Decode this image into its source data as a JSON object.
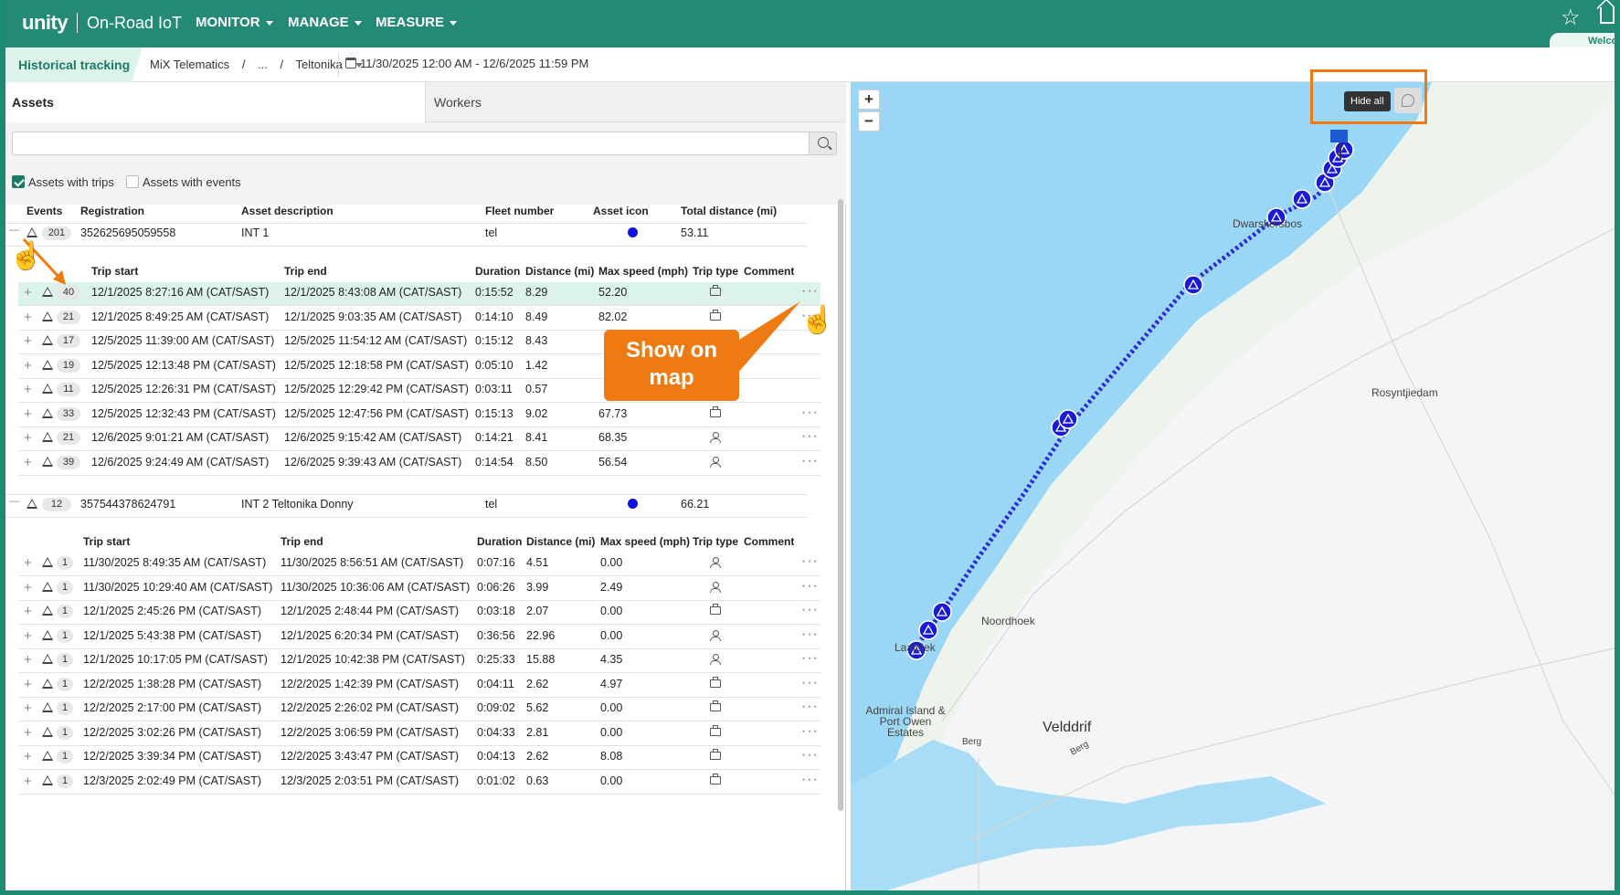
{
  "nav": {
    "logo": "unity",
    "product": "On-Road IoT",
    "menus": [
      "MONITOR",
      "MANAGE",
      "MEASURE"
    ],
    "welcome": "Welco"
  },
  "subbar": {
    "title": "Historical tracking",
    "breadcrumb": [
      "MiX Telematics",
      "/",
      "...",
      "/",
      "Teltonika"
    ],
    "daterange": "11/30/2025 12:00 AM - 12/6/2025 11:59 PM"
  },
  "tabs": {
    "assets": "Assets",
    "workers": "Workers"
  },
  "search": {
    "placeholder": ""
  },
  "filters": {
    "with_trips": "Assets with trips",
    "with_events": "Assets with events"
  },
  "asset_headers": [
    "Events",
    "Registration",
    "Asset description",
    "Fleet number",
    "Asset icon",
    "Total distance (mi)"
  ],
  "trip_headers": [
    "Trip start",
    "Trip end",
    "Duration",
    "Distance (mi)",
    "Max speed (mph)",
    "Trip type",
    "Comment"
  ],
  "assets": [
    {
      "events": "201",
      "registration": "352625695059558",
      "description": "INT 1",
      "fleet": "tel",
      "distance": "53.11",
      "trips": [
        {
          "events": "40",
          "start": "12/1/2025 8:27:16 AM (CAT/SAST)",
          "end": "12/1/2025 8:43:08 AM (CAT/SAST)",
          "duration": "0:15:52",
          "distance": "8.29",
          "speed": "52.20",
          "type": "business"
        },
        {
          "events": "21",
          "start": "12/1/2025 8:49:25 AM (CAT/SAST)",
          "end": "12/1/2025 9:03:35 AM (CAT/SAST)",
          "duration": "0:14:10",
          "distance": "8.49",
          "speed": "82.02",
          "type": "business"
        },
        {
          "events": "17",
          "start": "12/5/2025 11:39:00 AM (CAT/SAST)",
          "end": "12/5/2025 11:54:12 AM (CAT/SAST)",
          "duration": "0:15:12",
          "distance": "8.43",
          "speed": "",
          "type": ""
        },
        {
          "events": "19",
          "start": "12/5/2025 12:13:48 PM (CAT/SAST)",
          "end": "12/5/2025 12:18:58 PM (CAT/SAST)",
          "duration": "0:05:10",
          "distance": "1.42",
          "speed": "",
          "type": ""
        },
        {
          "events": "11",
          "start": "12/5/2025 12:26:31 PM (CAT/SAST)",
          "end": "12/5/2025 12:29:42 PM (CAT/SAST)",
          "duration": "0:03:11",
          "distance": "0.57",
          "speed": "",
          "type": ""
        },
        {
          "events": "33",
          "start": "12/5/2025 12:32:43 PM (CAT/SAST)",
          "end": "12/5/2025 12:47:56 PM (CAT/SAST)",
          "duration": "0:15:13",
          "distance": "9.02",
          "speed": "67.73",
          "type": "business"
        },
        {
          "events": "21",
          "start": "12/6/2025 9:01:21 AM (CAT/SAST)",
          "end": "12/6/2025 9:15:42 AM (CAT/SAST)",
          "duration": "0:14:21",
          "distance": "8.41",
          "speed": "68.35",
          "type": "private"
        },
        {
          "events": "39",
          "start": "12/6/2025 9:24:49 AM (CAT/SAST)",
          "end": "12/6/2025 9:39:43 AM (CAT/SAST)",
          "duration": "0:14:54",
          "distance": "8.50",
          "speed": "56.54",
          "type": "private"
        }
      ]
    },
    {
      "events": "12",
      "registration": "357544378624791",
      "description": "INT 2 Teltonika Donny",
      "fleet": "tel",
      "distance": "66.21",
      "trips": [
        {
          "events": "1",
          "start": "11/30/2025 8:49:35 AM (CAT/SAST)",
          "end": "11/30/2025 8:56:51 AM (CAT/SAST)",
          "duration": "0:07:16",
          "distance": "4.51",
          "speed": "0.00",
          "type": "private"
        },
        {
          "events": "1",
          "start": "11/30/2025 10:29:40 AM (CAT/SAST)",
          "end": "11/30/2025 10:36:06 AM (CAT/SAST)",
          "duration": "0:06:26",
          "distance": "3.99",
          "speed": "2.49",
          "type": "private"
        },
        {
          "events": "1",
          "start": "12/1/2025 2:45:26 PM (CAT/SAST)",
          "end": "12/1/2025 2:48:44 PM (CAT/SAST)",
          "duration": "0:03:18",
          "distance": "2.07",
          "speed": "0.00",
          "type": "business"
        },
        {
          "events": "1",
          "start": "12/1/2025 5:43:38 PM (CAT/SAST)",
          "end": "12/1/2025 6:20:34 PM (CAT/SAST)",
          "duration": "0:36:56",
          "distance": "22.96",
          "speed": "0.00",
          "type": "private"
        },
        {
          "events": "1",
          "start": "12/1/2025 10:17:05 PM (CAT/SAST)",
          "end": "12/1/2025 10:42:38 PM (CAT/SAST)",
          "duration": "0:25:33",
          "distance": "15.88",
          "speed": "4.35",
          "type": "private"
        },
        {
          "events": "1",
          "start": "12/2/2025 1:38:28 PM (CAT/SAST)",
          "end": "12/2/2025 1:42:39 PM (CAT/SAST)",
          "duration": "0:04:11",
          "distance": "2.62",
          "speed": "4.97",
          "type": "business"
        },
        {
          "events": "1",
          "start": "12/2/2025 2:17:00 PM (CAT/SAST)",
          "end": "12/2/2025 2:26:02 PM (CAT/SAST)",
          "duration": "0:09:02",
          "distance": "5.62",
          "speed": "0.00",
          "type": "business"
        },
        {
          "events": "1",
          "start": "12/2/2025 3:02:26 PM (CAT/SAST)",
          "end": "12/2/2025 3:06:59 PM (CAT/SAST)",
          "duration": "0:04:33",
          "distance": "2.81",
          "speed": "0.00",
          "type": "business"
        },
        {
          "events": "1",
          "start": "12/2/2025 3:39:34 PM (CAT/SAST)",
          "end": "12/2/2025 3:43:47 PM (CAT/SAST)",
          "duration": "0:04:13",
          "distance": "2.62",
          "speed": "8.08",
          "type": "business"
        },
        {
          "events": "1",
          "start": "12/3/2025 2:02:49 PM (CAT/SAST)",
          "end": "12/3/2025 2:03:51 PM (CAT/SAST)",
          "duration": "0:01:02",
          "distance": "0.63",
          "speed": "0.00",
          "type": "business"
        }
      ]
    }
  ],
  "map": {
    "zoom_in": "+",
    "zoom_out": "−",
    "hide_all": "Hide all",
    "labels": [
      "Dwarskersbos",
      "Rosyntjiedam",
      "Noordhoek",
      "Laaiplek",
      "Admiral Island & Port Owen Estates",
      "Velddrif",
      "Berg",
      "Berg"
    ],
    "route_color": "#2b2bdd",
    "sea_color": "#9ad6f5"
  },
  "callout": "Show on map",
  "colors": {
    "header": "#248a76",
    "accent": "#f07a12",
    "highlight": "#dcf3ea"
  }
}
